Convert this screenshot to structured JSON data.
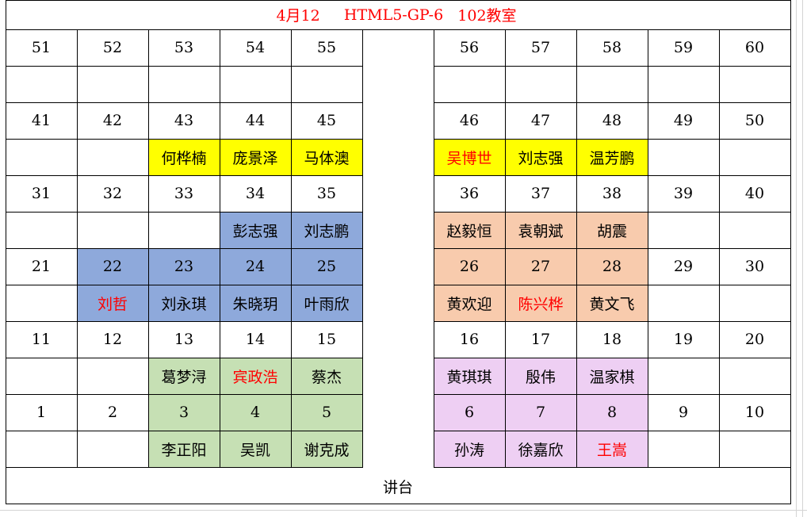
{
  "title": {
    "date": "4月12",
    "class_code": "HTML5-GP-6",
    "room": "102教室",
    "color": "#ff0000"
  },
  "podium": "讲台",
  "colors": {
    "yellow": "#ffff00",
    "blue": "#8ea9db",
    "peach": "#f8cbad",
    "green": "#c6e0b4",
    "lavender": "#eecff3",
    "highlight_text": "#ff0000"
  },
  "seat_rows": [
    {
      "numbers": [
        "51",
        "52",
        "53",
        "54",
        "55",
        "56",
        "57",
        "58",
        "59",
        "60"
      ],
      "names": [
        "",
        "",
        "",
        "",
        "",
        "",
        "",
        "",
        "",
        ""
      ]
    },
    {
      "numbers": [
        "41",
        "42",
        "43",
        "44",
        "45",
        "46",
        "47",
        "48",
        "49",
        "50"
      ],
      "names": [
        "",
        "",
        "何桦楠",
        "庞景泽",
        "马体澳",
        "吴博世",
        "刘志强",
        "温芳鹏",
        "",
        ""
      ]
    },
    {
      "numbers": [
        "31",
        "32",
        "33",
        "34",
        "35",
        "36",
        "37",
        "38",
        "39",
        "40"
      ],
      "names": [
        "",
        "",
        "",
        "彭志强",
        "刘志鹏",
        "赵毅恒",
        "袁朝斌",
        "胡震",
        "",
        ""
      ]
    },
    {
      "numbers": [
        "21",
        "22",
        "23",
        "24",
        "25",
        "26",
        "27",
        "28",
        "29",
        "30"
      ],
      "names": [
        "",
        "刘哲",
        "刘永琪",
        "朱晓玥",
        "叶雨欣",
        "黄欢迎",
        "陈兴桦",
        "黄文飞",
        "",
        ""
      ]
    },
    {
      "numbers": [
        "11",
        "12",
        "13",
        "14",
        "15",
        "16",
        "17",
        "18",
        "19",
        "20"
      ],
      "names": [
        "",
        "",
        "葛梦浔",
        "宾政浩",
        "蔡杰",
        "黄琪琪",
        "殷伟",
        "温家棋",
        "",
        ""
      ]
    },
    {
      "numbers": [
        "1",
        "2",
        "3",
        "4",
        "5",
        "6",
        "7",
        "8",
        "9",
        "10"
      ],
      "names": [
        "",
        "",
        "李正阳",
        "吴凯",
        "谢克成",
        "孙涛",
        "徐嘉欣",
        "王嵩",
        "",
        ""
      ]
    }
  ]
}
